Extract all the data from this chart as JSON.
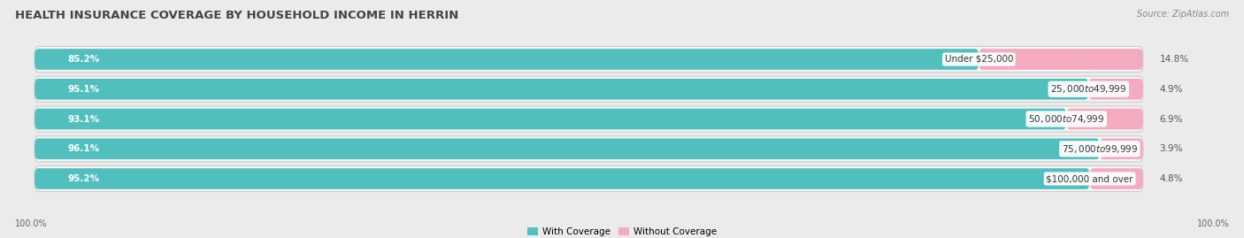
{
  "title": "HEALTH INSURANCE COVERAGE BY HOUSEHOLD INCOME IN HERRIN",
  "source": "Source: ZipAtlas.com",
  "categories": [
    "Under $25,000",
    "$25,000 to $49,999",
    "$50,000 to $74,999",
    "$75,000 to $99,999",
    "$100,000 and over"
  ],
  "with_coverage": [
    85.2,
    95.1,
    93.1,
    96.1,
    95.2
  ],
  "without_coverage": [
    14.8,
    4.9,
    6.9,
    3.9,
    4.8
  ],
  "color_with": "#52BFBF",
  "color_without": "#F080A0",
  "color_without_light": "#F4AABF",
  "bg_color": "#EBEBEB",
  "bar_bg_color": "#E0E0E0",
  "title_fontsize": 9.5,
  "label_fontsize": 7.5,
  "legend_fontsize": 7.5,
  "footer_fontsize": 7.0
}
